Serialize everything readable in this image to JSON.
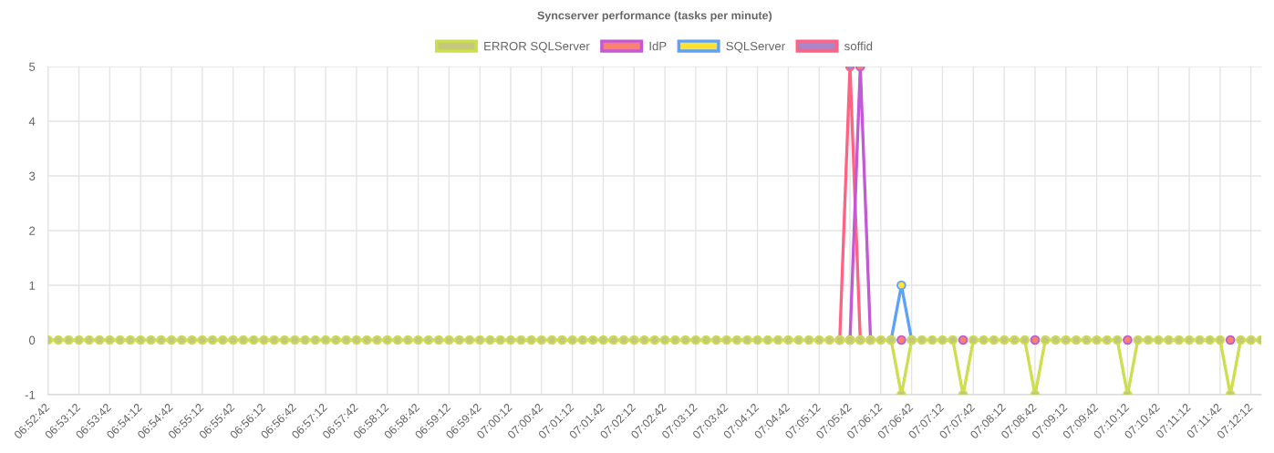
{
  "chart_data": {
    "type": "line",
    "title": "Syncserver performance (tasks per minute)",
    "categories": [
      "06:52:42",
      null,
      null,
      "06:53:12",
      null,
      null,
      "06:53:42",
      null,
      null,
      "06:54:12",
      null,
      null,
      "06:54:42",
      null,
      null,
      "06:55:12",
      null,
      null,
      "06:55:42",
      null,
      null,
      "06:56:12",
      null,
      null,
      "06:56:42",
      null,
      null,
      "06:57:12",
      null,
      null,
      "06:57:42",
      null,
      null,
      "06:58:12",
      null,
      null,
      "06:58:42",
      null,
      null,
      "06:59:12",
      null,
      null,
      "06:59:42",
      null,
      null,
      "07:00:12",
      null,
      null,
      "07:00:42",
      null,
      null,
      "07:01:12",
      null,
      null,
      "07:01:42",
      null,
      null,
      "07:02:12",
      null,
      null,
      "07:02:42",
      null,
      null,
      "07:03:12",
      null,
      null,
      "07:03:42",
      null,
      null,
      "07:04:12",
      null,
      null,
      "07:04:42",
      null,
      null,
      "07:05:12",
      null,
      null,
      "07:05:42",
      null,
      null,
      "07:06:12",
      null,
      null,
      "07:06:42",
      null,
      null,
      "07:07:12",
      null,
      null,
      "07:07:42",
      null,
      null,
      "07:08:12",
      null,
      null,
      "07:08:42",
      null,
      null,
      "07:09:12",
      null,
      null,
      "07:09:42",
      null,
      null,
      "07:10:12",
      null,
      null,
      "07:10:42",
      null,
      null,
      "07:11:12",
      null,
      null,
      "07:11:42",
      null,
      null,
      "07:12:12",
      null
    ],
    "series": [
      {
        "name": "ERROR SQLServer",
        "color": "#cddf4e",
        "values": [
          0,
          0,
          0,
          0,
          0,
          0,
          0,
          0,
          0,
          0,
          0,
          0,
          0,
          0,
          0,
          0,
          0,
          0,
          0,
          0,
          0,
          0,
          0,
          0,
          0,
          0,
          0,
          0,
          0,
          0,
          0,
          0,
          0,
          0,
          0,
          0,
          0,
          0,
          0,
          0,
          0,
          0,
          0,
          0,
          0,
          0,
          0,
          0,
          0,
          0,
          0,
          0,
          0,
          0,
          0,
          0,
          0,
          0,
          0,
          0,
          0,
          0,
          0,
          0,
          0,
          0,
          0,
          0,
          0,
          0,
          0,
          0,
          0,
          0,
          0,
          0,
          0,
          0,
          0,
          0,
          0,
          0,
          0,
          -1,
          0,
          0,
          0,
          0,
          0,
          -1,
          0,
          0,
          0,
          0,
          0,
          0,
          -1,
          0,
          0,
          0,
          0,
          0,
          0,
          0,
          0,
          -1,
          0,
          0,
          0,
          0,
          0,
          0,
          0,
          0,
          0,
          -1,
          0,
          0,
          0
        ],
        "colors": [
          "#c4c77c",
          "#c4c77c",
          "#c4c77c",
          "#c4c77c",
          "#c4c77c",
          "#c4c77c",
          "#c4c77c",
          "#c4c77c",
          "#c4c77c",
          "#c4c77c",
          "#c4c77c",
          "#c4c77c",
          "#c4c77c",
          "#c4c77c",
          "#c4c77c",
          "#c4c77c",
          "#c4c77c",
          "#c4c77c",
          "#c4c77c",
          "#c4c77c",
          "#c4c77c",
          "#c4c77c",
          "#c4c77c",
          "#c4c77c",
          "#c4c77c",
          "#c4c77c",
          "#c4c77c",
          "#c4c77c",
          "#c4c77c",
          "#c4c77c",
          "#c4c77c",
          "#c4c77c",
          "#c4c77c",
          "#c4c77c",
          "#c4c77c",
          "#c4c77c",
          "#c4c77c",
          "#c4c77c",
          "#c4c77c",
          "#c4c77c",
          "#c4c77c",
          "#c4c77c",
          "#c4c77c",
          "#c4c77c",
          "#c4c77c",
          "#c4c77c",
          "#c4c77c",
          "#c4c77c",
          "#c4c77c",
          "#c4c77c",
          "#c4c77c",
          "#c4c77c",
          "#c4c77c",
          "#c4c77c",
          "#c4c77c",
          "#c4c77c",
          "#c4c77c",
          "#c4c77c",
          "#c4c77c",
          "#c4c77c",
          "#c4c77c",
          "#c4c77c",
          "#c4c77c",
          "#c4c77c",
          "#c4c77c",
          "#c4c77c",
          "#c4c77c",
          "#c4c77c",
          "#c4c77c",
          "#c4c77c",
          "#c4c77c",
          "#c4c77c",
          "#c4c77c",
          "#c4c77c",
          "#c4c77c",
          "#c4c77c",
          "#c4c77c",
          "#c4c77c",
          "#c4c77c",
          "#c4c77c",
          "#c4c77c",
          "#c4c77c",
          "#c4c77c",
          "#c4c77c",
          "#c4c77c",
          "#c4c77c",
          "#c4c77c",
          "#c4c77c",
          "#c4c77c",
          "#c4c77c",
          "#c4c77c",
          "#c4c77c",
          "#c4c77c",
          "#c4c77c",
          "#c4c77c",
          "#c4c77c",
          "#c4c77c",
          "#c4c77c",
          "#c4c77c",
          "#c4c77c",
          "#c4c77c",
          "#c4c77c",
          "#c4c77c",
          "#c4c77c",
          "#c4c77c",
          "#c4c77c",
          "#c4c77c",
          "#c4c77c",
          "#c4c77c",
          "#c4c77c",
          "#c4c77c",
          "#c4c77c",
          "#c4c77c",
          "#c4c77c",
          "#c4c77c",
          "#c4c77c",
          "#c4c77c",
          "#c4c77c",
          "#c4c77c"
        ]
      },
      {
        "name": "IdP",
        "color": "#c25ad6",
        "values": [
          null,
          null,
          null,
          null,
          null,
          null,
          null,
          null,
          null,
          null,
          null,
          null,
          null,
          null,
          null,
          null,
          null,
          null,
          null,
          null,
          null,
          null,
          null,
          null,
          null,
          null,
          null,
          null,
          null,
          null,
          null,
          null,
          null,
          null,
          null,
          null,
          null,
          null,
          null,
          null,
          null,
          null,
          null,
          null,
          null,
          null,
          null,
          null,
          null,
          null,
          null,
          null,
          null,
          null,
          null,
          null,
          null,
          null,
          null,
          null,
          null,
          null,
          null,
          null,
          null,
          null,
          null,
          null,
          null,
          null,
          null,
          null,
          null,
          null,
          null,
          null,
          null,
          null,
          0,
          5,
          0,
          null,
          null,
          0,
          null,
          null,
          null,
          null,
          null,
          0,
          null,
          null,
          null,
          null,
          null,
          null,
          0,
          null,
          null,
          null,
          null,
          null,
          null,
          null,
          null,
          0,
          null,
          null,
          null,
          null,
          null,
          null,
          null,
          null,
          null,
          0,
          null,
          null,
          null
        ],
        "colors": [
          "#fa8072",
          "#fa8072",
          "#fa8072",
          "#fa8072",
          "#fa8072",
          "#fa8072",
          "#fa8072",
          "#fa8072",
          "#fa8072",
          "#fa8072",
          "#fa8072",
          "#fa8072",
          "#fa8072",
          "#fa8072",
          "#fa8072",
          "#fa8072",
          "#fa8072",
          "#fa8072",
          "#fa8072",
          "#fa8072",
          "#fa8072",
          "#fa8072",
          "#fa8072",
          "#fa8072",
          "#fa8072",
          "#fa8072",
          "#fa8072",
          "#fa8072",
          "#fa8072",
          "#fa8072",
          "#fa8072",
          "#fa8072",
          "#fa8072",
          "#fa8072",
          "#fa8072",
          "#fa8072",
          "#fa8072",
          "#fa8072",
          "#fa8072",
          "#fa8072",
          "#fa8072",
          "#fa8072",
          "#fa8072",
          "#fa8072",
          "#fa8072",
          "#fa8072",
          "#fa8072",
          "#fa8072",
          "#fa8072",
          "#fa8072",
          "#fa8072",
          "#fa8072",
          "#fa8072",
          "#fa8072",
          "#fa8072",
          "#fa8072",
          "#fa8072",
          "#fa8072",
          "#fa8072",
          "#fa8072",
          "#fa8072",
          "#fa8072",
          "#fa8072",
          "#fa8072",
          "#fa8072",
          "#fa8072",
          "#fa8072",
          "#fa8072",
          "#fa8072",
          "#fa8072",
          "#fa8072",
          "#fa8072",
          "#fa8072",
          "#fa8072",
          "#fa8072",
          "#fa8072",
          "#fa8072",
          "#fa8072",
          "#fa8072",
          "#fa8072",
          "#fa8072",
          "#fa8072",
          "#fa8072",
          "#fa8072",
          "#fa8072",
          "#fa8072",
          "#fa8072",
          "#fa8072",
          "#fa8072",
          "#fa8072",
          "#fa8072",
          "#fa8072",
          "#fa8072",
          "#fa8072",
          "#fa8072",
          "#fa8072",
          "#fa8072",
          "#fa8072",
          "#fa8072",
          "#fa8072",
          "#fa8072",
          "#fa8072",
          "#fa8072",
          "#fa8072",
          "#fa8072",
          "#fa8072",
          "#fa8072",
          "#fa8072",
          "#fa8072",
          "#fa8072",
          "#fa8072",
          "#fa8072",
          "#fa8072",
          "#fa8072",
          "#fa8072",
          "#fa8072",
          "#fa8072",
          "#fa8072",
          "#fa8072"
        ]
      },
      {
        "name": "SQLServer",
        "color": "#5ea1f8",
        "values": [
          null,
          null,
          null,
          null,
          null,
          null,
          null,
          null,
          null,
          null,
          null,
          null,
          null,
          null,
          null,
          null,
          null,
          null,
          null,
          null,
          null,
          null,
          null,
          null,
          null,
          null,
          null,
          null,
          null,
          null,
          null,
          null,
          null,
          null,
          null,
          null,
          null,
          null,
          null,
          null,
          null,
          null,
          null,
          null,
          null,
          null,
          null,
          null,
          null,
          null,
          null,
          null,
          null,
          null,
          null,
          null,
          null,
          null,
          null,
          null,
          null,
          null,
          null,
          null,
          null,
          null,
          null,
          null,
          null,
          null,
          null,
          null,
          null,
          null,
          null,
          null,
          null,
          null,
          null,
          null,
          null,
          null,
          0,
          1,
          0,
          null,
          null,
          null,
          null,
          null,
          null,
          null,
          null,
          null,
          null,
          null,
          null,
          null,
          null,
          null,
          null,
          null,
          null,
          null,
          null,
          null,
          null,
          null,
          null,
          null,
          null,
          null,
          null,
          null,
          null,
          null,
          null,
          null,
          null
        ],
        "colors": [
          "#ffe135",
          "#ffe135",
          "#ffe135",
          "#ffe135",
          "#ffe135",
          "#ffe135",
          "#ffe135",
          "#ffe135",
          "#ffe135",
          "#ffe135",
          "#ffe135",
          "#ffe135",
          "#ffe135",
          "#ffe135",
          "#ffe135",
          "#ffe135",
          "#ffe135",
          "#ffe135",
          "#ffe135",
          "#ffe135",
          "#ffe135",
          "#ffe135",
          "#ffe135",
          "#ffe135",
          "#ffe135",
          "#ffe135",
          "#ffe135",
          "#ffe135",
          "#ffe135",
          "#ffe135",
          "#ffe135",
          "#ffe135",
          "#ffe135",
          "#ffe135",
          "#ffe135",
          "#ffe135",
          "#ffe135",
          "#ffe135",
          "#ffe135",
          "#ffe135",
          "#ffe135",
          "#ffe135",
          "#ffe135",
          "#ffe135",
          "#ffe135",
          "#ffe135",
          "#ffe135",
          "#ffe135",
          "#ffe135",
          "#ffe135",
          "#ffe135",
          "#ffe135",
          "#ffe135",
          "#ffe135",
          "#ffe135",
          "#ffe135",
          "#ffe135",
          "#ffe135",
          "#ffe135",
          "#ffe135",
          "#ffe135",
          "#ffe135",
          "#ffe135",
          "#ffe135",
          "#ffe135",
          "#ffe135",
          "#ffe135",
          "#ffe135",
          "#ffe135",
          "#ffe135",
          "#ffe135",
          "#ffe135",
          "#ffe135",
          "#ffe135",
          "#ffe135",
          "#ffe135",
          "#ffe135",
          "#ffe135",
          "#ffe135",
          "#ffe135",
          "#ffe135",
          "#ffe135",
          "#ffe135",
          "#ffe135",
          "#ffe135",
          "#ffe135",
          "#ffe135",
          "#ffe135",
          "#ffe135",
          "#ffe135",
          "#ffe135",
          "#ffe135",
          "#ffe135",
          "#ffe135",
          "#ffe135",
          "#ffe135",
          "#ffe135",
          "#ffe135",
          "#ffe135",
          "#ffe135",
          "#ffe135",
          "#ffe135",
          "#ffe135",
          "#ffe135",
          "#ffe135",
          "#ffe135",
          "#ffe135",
          "#ffe135",
          "#ffe135",
          "#ffe135",
          "#ffe135",
          "#ffe135",
          "#ffe135",
          "#ffe135",
          "#ffe135",
          "#ffe135",
          "#ffe135",
          "#ffe135",
          "#ffe135"
        ]
      },
      {
        "name": "soffid",
        "color": "#ff6384",
        "values": [
          null,
          null,
          null,
          null,
          null,
          null,
          null,
          null,
          null,
          null,
          null,
          null,
          null,
          null,
          null,
          null,
          null,
          null,
          null,
          null,
          null,
          null,
          null,
          null,
          null,
          null,
          null,
          null,
          null,
          null,
          null,
          null,
          null,
          null,
          null,
          null,
          null,
          null,
          null,
          null,
          null,
          null,
          null,
          null,
          null,
          null,
          null,
          null,
          null,
          null,
          null,
          null,
          null,
          null,
          null,
          null,
          null,
          null,
          null,
          null,
          null,
          null,
          null,
          null,
          null,
          null,
          null,
          null,
          null,
          null,
          null,
          null,
          null,
          null,
          null,
          null,
          null,
          0,
          5,
          0,
          null,
          null,
          null,
          null,
          null,
          null,
          null,
          null,
          null,
          null,
          null,
          null,
          null,
          null,
          null,
          null,
          null,
          null,
          null,
          null,
          null,
          null,
          null,
          null,
          null,
          null,
          null,
          null,
          null,
          null,
          null,
          null,
          null,
          null,
          null,
          null,
          null,
          null,
          null
        ],
        "colors": [
          "#a985c9",
          "#a985c9",
          "#a985c9",
          "#a985c9",
          "#a985c9",
          "#a985c9",
          "#a985c9",
          "#a985c9",
          "#a985c9",
          "#a985c9",
          "#a985c9",
          "#a985c9",
          "#a985c9",
          "#a985c9",
          "#a985c9",
          "#a985c9",
          "#a985c9",
          "#a985c9",
          "#a985c9",
          "#a985c9",
          "#a985c9",
          "#a985c9",
          "#a985c9",
          "#a985c9",
          "#a985c9",
          "#a985c9",
          "#a985c9",
          "#a985c9",
          "#a985c9",
          "#a985c9",
          "#a985c9",
          "#a985c9",
          "#a985c9",
          "#a985c9",
          "#a985c9",
          "#a985c9",
          "#a985c9",
          "#a985c9",
          "#a985c9",
          "#a985c9",
          "#a985c9",
          "#a985c9",
          "#a985c9",
          "#a985c9",
          "#a985c9",
          "#a985c9",
          "#a985c9",
          "#a985c9",
          "#a985c9",
          "#a985c9",
          "#a985c9",
          "#a985c9",
          "#a985c9",
          "#a985c9",
          "#a985c9",
          "#a985c9",
          "#a985c9",
          "#a985c9",
          "#a985c9",
          "#a985c9",
          "#a985c9",
          "#a985c9",
          "#a985c9",
          "#a985c9",
          "#a985c9",
          "#a985c9",
          "#a985c9",
          "#a985c9",
          "#a985c9",
          "#a985c9",
          "#a985c9",
          "#a985c9",
          "#a985c9",
          "#a985c9",
          "#a985c9",
          "#a985c9",
          "#a985c9",
          "#a985c9",
          "#a985c9",
          "#a985c9",
          "#a985c9",
          "#a985c9",
          "#a985c9",
          "#a985c9",
          "#a985c9",
          "#a985c9",
          "#a985c9",
          "#a985c9",
          "#a985c9",
          "#a985c9",
          "#a985c9",
          "#a985c9",
          "#a985c9",
          "#a985c9",
          "#a985c9",
          "#a985c9",
          "#a985c9",
          "#a985c9",
          "#a985c9",
          "#a985c9",
          "#a985c9",
          "#a985c9",
          "#a985c9",
          "#a985c9",
          "#a985c9",
          "#a985c9",
          "#a985c9",
          "#a985c9",
          "#a985c9",
          "#a985c9",
          "#a985c9",
          "#a985c9",
          "#a985c9",
          "#a985c9",
          "#a985c9",
          "#a985c9",
          "#a985c9",
          "#a985c9",
          "#a985c9"
        ]
      }
    ],
    "ylim": [
      -1,
      5
    ],
    "yticks": [
      -1,
      0,
      1,
      2,
      3,
      4,
      5
    ],
    "grid": true,
    "legend": "top",
    "marker": "circle",
    "line_style": "solid"
  }
}
